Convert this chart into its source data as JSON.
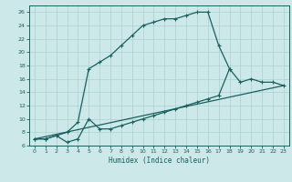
{
  "xlabel": "Humidex (Indice chaleur)",
  "bg_color": "#cce8e8",
  "grid_color": "#aad0d0",
  "line_color": "#1a6060",
  "xlim": [
    -0.5,
    23.5
  ],
  "ylim": [
    6,
    27
  ],
  "xticks": [
    0,
    1,
    2,
    3,
    4,
    5,
    6,
    7,
    8,
    9,
    10,
    11,
    12,
    13,
    14,
    15,
    16,
    17,
    18,
    19,
    20,
    21,
    22,
    23
  ],
  "yticks": [
    6,
    8,
    10,
    12,
    14,
    16,
    18,
    20,
    22,
    24,
    26
  ],
  "curve1_x": [
    0,
    1,
    2,
    3,
    4,
    5,
    6,
    7,
    8,
    9,
    10,
    11,
    12,
    13,
    14,
    15,
    16,
    17,
    18
  ],
  "curve1_y": [
    7.0,
    7.0,
    7.5,
    8.0,
    9.5,
    17.5,
    18.5,
    19.5,
    21.0,
    22.5,
    24.0,
    24.5,
    25.0,
    25.0,
    25.5,
    26.0,
    26.0,
    21.0,
    17.5
  ],
  "curve2_x": [
    0,
    1,
    2,
    3,
    4,
    5,
    6,
    7,
    8,
    9,
    10,
    11,
    12,
    13,
    14,
    15,
    16,
    17,
    18,
    19,
    20,
    21,
    22,
    23
  ],
  "curve2_y": [
    7.0,
    7.0,
    7.5,
    6.5,
    7.0,
    10.0,
    8.5,
    8.5,
    9.0,
    9.5,
    10.0,
    10.5,
    11.0,
    11.5,
    12.0,
    12.5,
    13.0,
    13.5,
    17.5,
    15.5,
    16.0,
    15.5,
    15.5,
    15.0
  ],
  "curve3_x": [
    0,
    23
  ],
  "curve3_y": [
    7.0,
    15.0
  ]
}
